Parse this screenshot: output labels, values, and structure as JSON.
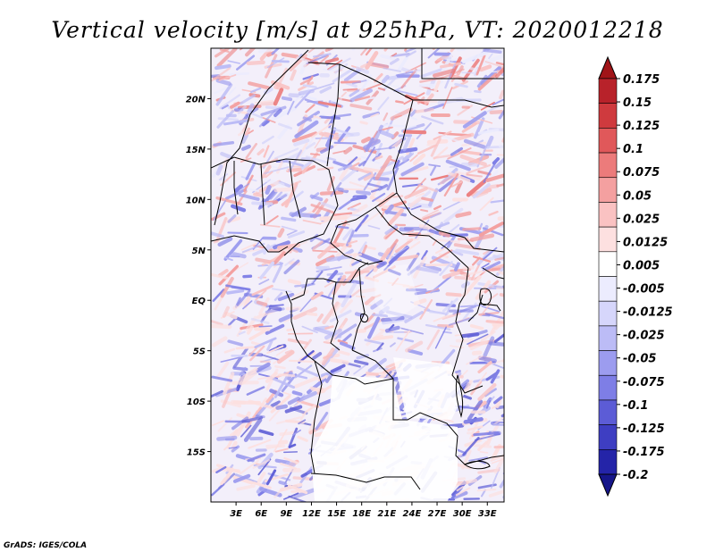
{
  "title": "Vertical velocity [m/s] at 925hPa, VT: 2020012218",
  "credit": "GrADS: IGES/COLA",
  "map": {
    "lon_range": [
      0,
      35
    ],
    "lat_range": [
      -20,
      25
    ],
    "lon_ticks": [
      "3E",
      "6E",
      "9E",
      "12E",
      "15E",
      "18E",
      "21E",
      "24E",
      "27E",
      "30E",
      "33E"
    ],
    "lat_ticks": [
      "20N",
      "15N",
      "10N",
      "5N",
      "EQ",
      "5S",
      "10S",
      "15S"
    ]
  },
  "colorbar": {
    "labels": [
      "0.175",
      "0.15",
      "0.125",
      "0.1",
      "0.075",
      "0.05",
      "0.025",
      "0.0125",
      "0.005",
      "-0.005",
      "-0.0125",
      "-0.025",
      "-0.05",
      "-0.075",
      "-0.1",
      "-0.125",
      "-0.175",
      "-0.2"
    ],
    "colors": [
      "#a01418",
      "#b8222a",
      "#cf3a3e",
      "#e0585a",
      "#ec7b7b",
      "#f4a0a0",
      "#fac2c2",
      "#fde0e0",
      "#ffffff",
      "#ececfe",
      "#d6d6fb",
      "#bcbcf6",
      "#9c9cef",
      "#7e7ee6",
      "#5c5cd6",
      "#3e3ec2",
      "#2424a8",
      "#16168a"
    ]
  },
  "colors": {
    "land_blank": "#ffffff",
    "border": "#000000",
    "positive": "#e04848",
    "negative": "#5a5ad8"
  }
}
